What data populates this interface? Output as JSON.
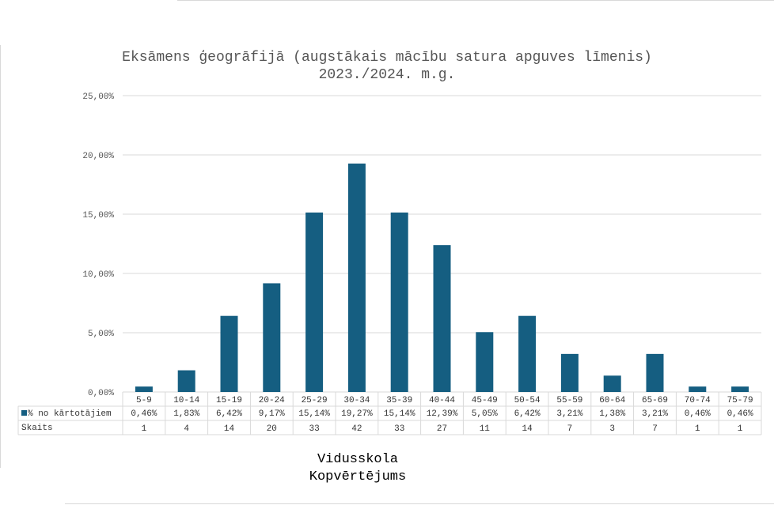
{
  "chart_data": {
    "type": "bar",
    "title": "Eksāmens ģeogrāfijā (augstākais mācību satura apguves līmenis)",
    "subtitle": "2023./2024. m.g.",
    "ylim": [
      0,
      25
    ],
    "y_ticks": [
      "0,00%",
      "5,00%",
      "10,00%",
      "15,00%",
      "20,00%",
      "25,00%"
    ],
    "y_tick_values": [
      0,
      5,
      10,
      15,
      20,
      25
    ],
    "grid": true,
    "categories": [
      "5-9",
      "10-14",
      "15-19",
      "20-24",
      "25-29",
      "30-34",
      "35-39",
      "40-44",
      "45-49",
      "50-54",
      "55-59",
      "60-64",
      "65-69",
      "70-74",
      "75-79"
    ],
    "series": [
      {
        "name": "% no kārtotājiem",
        "color": "#155e81",
        "values": [
          0.46,
          1.83,
          6.42,
          9.17,
          15.14,
          19.27,
          15.14,
          12.39,
          5.05,
          6.42,
          3.21,
          1.38,
          3.21,
          0.46,
          0.46
        ],
        "labels": [
          "0,46%",
          "1,83%",
          "6,42%",
          "9,17%",
          "15,14%",
          "19,27%",
          "15,14%",
          "12,39%",
          "5,05%",
          "6,42%",
          "3,21%",
          "1,38%",
          "3,21%",
          "0,46%",
          "0,46%"
        ]
      }
    ],
    "table_rows": [
      {
        "name": "Skaits",
        "values": [
          "1",
          "4",
          "14",
          "20",
          "33",
          "42",
          "33",
          "27",
          "11",
          "14",
          "7",
          "3",
          "7",
          "1",
          "1"
        ]
      }
    ]
  },
  "footer": {
    "line1": "Vidusskola",
    "line2": "Kopvērtējums"
  }
}
